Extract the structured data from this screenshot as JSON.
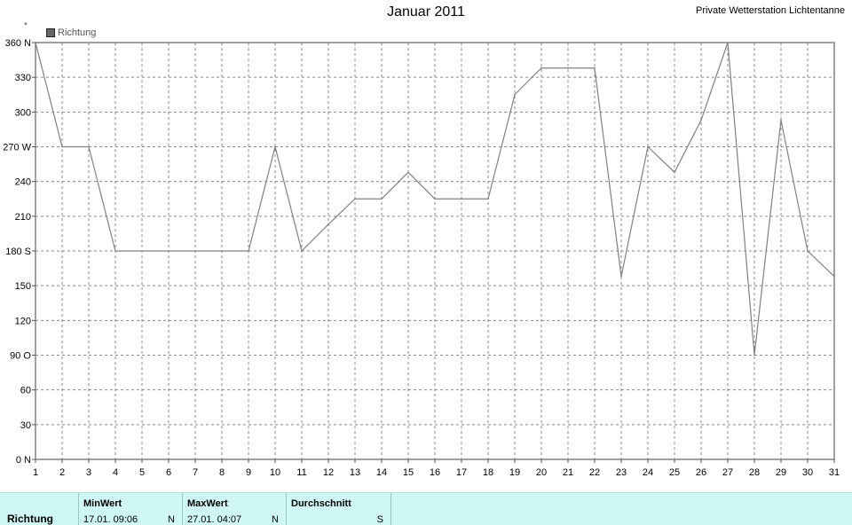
{
  "window": {
    "title": "Januar 2011",
    "station": "Private Wetterstation Lichtentanne"
  },
  "chart_data": {
    "type": "line",
    "title": "Januar 2011",
    "unit_label": "°",
    "legend": "Richtung",
    "legend_position": "top-left",
    "grid": true,
    "ylim": [
      0,
      360
    ],
    "y_ticks": [
      {
        "value": 360,
        "label": "360 N"
      },
      {
        "value": 330,
        "label": "330"
      },
      {
        "value": 300,
        "label": "300"
      },
      {
        "value": 270,
        "label": "270 W"
      },
      {
        "value": 240,
        "label": "240"
      },
      {
        "value": 210,
        "label": "210"
      },
      {
        "value": 180,
        "label": "180 S"
      },
      {
        "value": 150,
        "label": "150"
      },
      {
        "value": 120,
        "label": "120"
      },
      {
        "value": 90,
        "label": "90   O"
      },
      {
        "value": 60,
        "label": "60"
      },
      {
        "value": 30,
        "label": "30"
      },
      {
        "value": 0,
        "label": "0   N"
      }
    ],
    "x": [
      1,
      2,
      3,
      4,
      5,
      6,
      7,
      8,
      9,
      10,
      11,
      12,
      13,
      14,
      15,
      16,
      17,
      18,
      19,
      20,
      21,
      22,
      23,
      24,
      25,
      26,
      27,
      28,
      29,
      30,
      31
    ],
    "series": [
      {
        "name": "Richtung",
        "color": "#808080",
        "values": [
          360,
          270,
          270,
          180,
          180,
          180,
          180,
          180,
          180,
          270,
          180,
          203,
          225,
          225,
          248,
          225,
          225,
          225,
          315,
          338,
          338,
          338,
          158,
          270,
          248,
          293,
          360,
          90,
          293,
          180,
          158
        ]
      }
    ]
  },
  "footer": {
    "row_label": "Richtung",
    "min": {
      "label": "MinWert",
      "value": "17.01.  09:06",
      "dir": "N"
    },
    "max": {
      "label": "MaxWert",
      "value": "27.01.  04:07",
      "dir": "N"
    },
    "avg": {
      "label": "Durchschnitt",
      "value": "",
      "dir": "S"
    }
  }
}
